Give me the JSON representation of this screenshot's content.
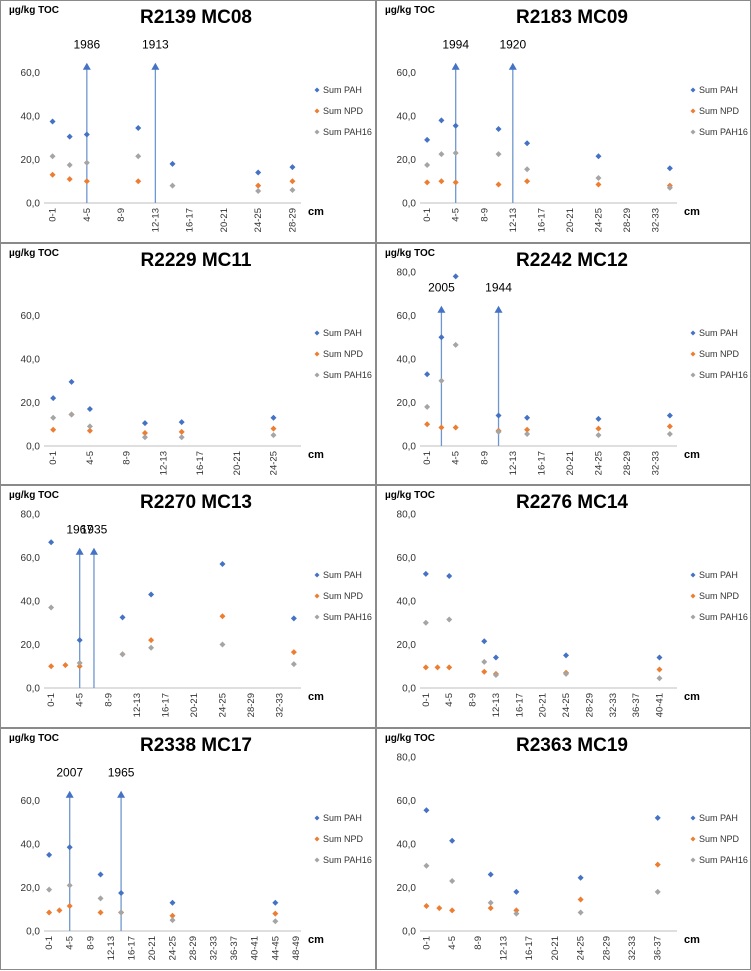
{
  "y_unit": "µg/kg TOC",
  "x_unit": "cm",
  "legend": [
    "Sum PAH",
    "Sum NPD",
    "Sum PAH16"
  ],
  "colors": {
    "Sum PAH": "#4472C4",
    "Sum NPD": "#ED7D31",
    "Sum PAH16": "#A5A5A5",
    "marker_line": "#6F97CF"
  },
  "ytick_labels": [
    "0,0",
    "20,0",
    "40,0",
    "60,0",
    "80,0"
  ],
  "chart_data": [
    {
      "type": "scatter",
      "title": "R2139 MC08",
      "ylabel": "µg/kg TOC",
      "xlabel": "cm",
      "ylim": [
        0,
        80
      ],
      "show_top_tick": false,
      "categories": [
        "0-1",
        "2-3",
        "4-5",
        "6-7",
        "8-9",
        "10-11",
        "12-13",
        "14-15",
        "16-17",
        "18-19",
        "20-21",
        "22-23",
        "24-25",
        "26-27",
        "28-29"
      ],
      "year_markers": [
        {
          "x": 2,
          "label": "1986"
        },
        {
          "x": 6,
          "label": "1913"
        }
      ],
      "series": [
        {
          "name": "Sum PAH",
          "points": [
            [
              0,
              37.5
            ],
            [
              1,
              30.5
            ],
            [
              2,
              31.5
            ],
            [
              5,
              34.5
            ],
            [
              7,
              18
            ],
            [
              12,
              14
            ],
            [
              14,
              16.5
            ]
          ]
        },
        {
          "name": "Sum NPD",
          "points": [
            [
              0,
              13
            ],
            [
              1,
              11
            ],
            [
              2,
              10
            ],
            [
              5,
              10
            ],
            [
              12,
              8
            ],
            [
              14,
              10
            ]
          ]
        },
        {
          "name": "Sum PAH16",
          "points": [
            [
              0,
              21.5
            ],
            [
              1,
              17.5
            ],
            [
              2,
              18.5
            ],
            [
              5,
              21.5
            ],
            [
              7,
              8
            ],
            [
              12,
              5.5
            ],
            [
              14,
              6
            ]
          ]
        }
      ]
    },
    {
      "type": "scatter",
      "title": "R2183 MC09",
      "ylabel": "µg/kg TOC",
      "xlabel": "cm",
      "ylim": [
        0,
        80
      ],
      "show_top_tick": false,
      "categories": [
        "0-1",
        "2-3",
        "4-5",
        "6-7",
        "8-9",
        "10-11",
        "12-13",
        "14-15",
        "16-17",
        "18-19",
        "20-21",
        "22-23",
        "24-25",
        "26-27",
        "28-29",
        "30-31",
        "32-33",
        "34-35"
      ],
      "year_markers": [
        {
          "x": 2,
          "label": "1994"
        },
        {
          "x": 6,
          "label": "1920"
        }
      ],
      "series": [
        {
          "name": "Sum PAH",
          "points": [
            [
              0,
              29
            ],
            [
              1,
              38
            ],
            [
              2,
              35.5
            ],
            [
              5,
              34
            ],
            [
              7,
              27.5
            ],
            [
              12,
              21.5
            ],
            [
              17,
              16
            ]
          ]
        },
        {
          "name": "Sum NPD",
          "points": [
            [
              0,
              9.5
            ],
            [
              1,
              10
            ],
            [
              2,
              9.5
            ],
            [
              5,
              8.5
            ],
            [
              7,
              10
            ],
            [
              12,
              8.5
            ],
            [
              17,
              8
            ]
          ]
        },
        {
          "name": "Sum PAH16",
          "points": [
            [
              0,
              17.5
            ],
            [
              1,
              22.5
            ],
            [
              2,
              23
            ],
            [
              5,
              22.5
            ],
            [
              7,
              15.5
            ],
            [
              12,
              11.5
            ],
            [
              17,
              7
            ]
          ]
        }
      ]
    },
    {
      "type": "scatter",
      "title": "R2229 MC11",
      "ylabel": "µg/kg TOC",
      "xlabel": "cm",
      "ylim": [
        0,
        80
      ],
      "show_top_tick": false,
      "categories": [
        "0-1",
        "2-3",
        "4-5",
        "6-7",
        "8-9",
        "10-11",
        "12-13",
        "14-15",
        "16-17",
        "18-19",
        "20-21",
        "22-23",
        "24-25",
        "26-27"
      ],
      "year_markers": [],
      "series": [
        {
          "name": "Sum PAH",
          "points": [
            [
              0,
              22
            ],
            [
              1,
              29.5
            ],
            [
              2,
              17
            ],
            [
              5,
              10.5
            ],
            [
              7,
              11
            ],
            [
              12,
              13
            ]
          ]
        },
        {
          "name": "Sum NPD",
          "points": [
            [
              0,
              7.5
            ],
            [
              1,
              14.5
            ],
            [
              2,
              7
            ],
            [
              5,
              6
            ],
            [
              7,
              6.5
            ],
            [
              12,
              8
            ]
          ]
        },
        {
          "name": "Sum PAH16",
          "points": [
            [
              0,
              13
            ],
            [
              1,
              14.5
            ],
            [
              2,
              9
            ],
            [
              5,
              4
            ],
            [
              7,
              4
            ],
            [
              12,
              5
            ]
          ]
        }
      ]
    },
    {
      "type": "scatter",
      "title": "R2242 MC12",
      "ylabel": "µg/kg TOC",
      "xlabel": "cm",
      "ylim": [
        0,
        80
      ],
      "show_top_tick": true,
      "categories": [
        "0-1",
        "2-3",
        "4-5",
        "6-7",
        "8-9",
        "10-11",
        "12-13",
        "14-15",
        "16-17",
        "18-19",
        "20-21",
        "22-23",
        "24-25",
        "26-27",
        "28-29",
        "30-31",
        "32-33",
        "34-35"
      ],
      "year_markers": [
        {
          "x": 1,
          "label": "2005"
        },
        {
          "x": 5,
          "label": "1944"
        }
      ],
      "series": [
        {
          "name": "Sum PAH",
          "points": [
            [
              0,
              33
            ],
            [
              1,
              50
            ],
            [
              2,
              78
            ],
            [
              5,
              14
            ],
            [
              7,
              13
            ],
            [
              12,
              12.5
            ],
            [
              17,
              14
            ]
          ]
        },
        {
          "name": "Sum NPD",
          "points": [
            [
              0,
              10
            ],
            [
              1,
              8.5
            ],
            [
              2,
              8.5
            ],
            [
              5,
              7
            ],
            [
              7,
              7.5
            ],
            [
              12,
              8
            ],
            [
              17,
              9
            ]
          ]
        },
        {
          "name": "Sum PAH16",
          "points": [
            [
              0,
              18
            ],
            [
              1,
              30
            ],
            [
              2,
              46.5
            ],
            [
              5,
              6.5
            ],
            [
              7,
              5.5
            ],
            [
              12,
              5
            ],
            [
              17,
              5.5
            ]
          ]
        }
      ]
    },
    {
      "type": "scatter",
      "title": "R2270 MC13",
      "ylabel": "µg/kg TOC",
      "xlabel": "cm",
      "ylim": [
        0,
        80
      ],
      "show_top_tick": true,
      "categories": [
        "0-1",
        "2-3",
        "4-5",
        "6-7",
        "8-9",
        "10-11",
        "12-13",
        "14-15",
        "16-17",
        "18-19",
        "20-21",
        "22-23",
        "24-25",
        "26-27",
        "28-29",
        "30-31",
        "32-33",
        "34-35"
      ],
      "year_markers": [
        {
          "x": 2,
          "label": "1967"
        },
        {
          "x": 3,
          "label": "1935"
        }
      ],
      "series": [
        {
          "name": "Sum PAH",
          "points": [
            [
              0,
              67
            ],
            [
              2,
              22
            ],
            [
              5,
              32.5
            ],
            [
              7,
              43
            ],
            [
              12,
              57
            ],
            [
              17,
              32
            ]
          ]
        },
        {
          "name": "Sum NPD",
          "points": [
            [
              0,
              10
            ],
            [
              1,
              10.5
            ],
            [
              2,
              10
            ],
            [
              5,
              15.5
            ],
            [
              7,
              22
            ],
            [
              12,
              33
            ],
            [
              17,
              16.5
            ]
          ]
        },
        {
          "name": "Sum PAH16",
          "points": [
            [
              0,
              37
            ],
            [
              2,
              11.5
            ],
            [
              5,
              15.5
            ],
            [
              7,
              18.5
            ],
            [
              12,
              20
            ],
            [
              17,
              11
            ]
          ]
        }
      ]
    },
    {
      "type": "scatter",
      "title": "R2276 MC14",
      "ylabel": "µg/kg TOC",
      "xlabel": "cm",
      "ylim": [
        0,
        80
      ],
      "show_top_tick": true,
      "categories": [
        "0-1",
        "2-3",
        "4-5",
        "6-7",
        "8-9",
        "10-11",
        "12-13",
        "14-15",
        "16-17",
        "18-19",
        "20-21",
        "22-23",
        "24-25",
        "26-27",
        "28-29",
        "30-31",
        "32-33",
        "34-35",
        "36-37",
        "38-39",
        "40-41",
        "42-43"
      ],
      "year_markers": [],
      "series": [
        {
          "name": "Sum PAH",
          "points": [
            [
              0,
              52.5
            ],
            [
              2,
              51.5
            ],
            [
              5,
              21.5
            ],
            [
              6,
              14
            ],
            [
              12,
              15
            ],
            [
              20,
              14
            ]
          ]
        },
        {
          "name": "Sum NPD",
          "points": [
            [
              0,
              9.5
            ],
            [
              1,
              9.5
            ],
            [
              2,
              9.5
            ],
            [
              5,
              7.5
            ],
            [
              6,
              6.5
            ],
            [
              12,
              7
            ],
            [
              20,
              8.5
            ]
          ]
        },
        {
          "name": "Sum PAH16",
          "points": [
            [
              0,
              30
            ],
            [
              2,
              31.5
            ],
            [
              5,
              12
            ],
            [
              6,
              6
            ],
            [
              12,
              6.5
            ],
            [
              20,
              4.5
            ]
          ]
        }
      ]
    },
    {
      "type": "scatter",
      "title": "R2338 MC17",
      "ylabel": "µg/kg TOC",
      "xlabel": "cm",
      "ylim": [
        0,
        80
      ],
      "show_top_tick": false,
      "categories": [
        "0-1",
        "2-3",
        "4-5",
        "6-7",
        "8-9",
        "10-11",
        "12-13",
        "14-15",
        "16-17",
        "18-19",
        "20-21",
        "22-23",
        "24-25",
        "26-27",
        "28-29",
        "30-31",
        "32-33",
        "34-35",
        "36-37",
        "38-39",
        "40-41",
        "42-43",
        "44-45",
        "46-47",
        "48-49"
      ],
      "year_markers": [
        {
          "x": 2,
          "label": "2007"
        },
        {
          "x": 7,
          "label": "1965"
        }
      ],
      "series": [
        {
          "name": "Sum PAH",
          "points": [
            [
              0,
              35
            ],
            [
              2,
              38.5
            ],
            [
              5,
              26
            ],
            [
              7,
              17.5
            ],
            [
              12,
              13
            ],
            [
              22,
              13
            ]
          ]
        },
        {
          "name": "Sum NPD",
          "points": [
            [
              0,
              8.5
            ],
            [
              1,
              9.5
            ],
            [
              2,
              11.5
            ],
            [
              5,
              8.5
            ],
            [
              7,
              8.5
            ],
            [
              12,
              7
            ],
            [
              22,
              8
            ]
          ]
        },
        {
          "name": "Sum PAH16",
          "points": [
            [
              0,
              19
            ],
            [
              2,
              21
            ],
            [
              5,
              15
            ],
            [
              7,
              8.5
            ],
            [
              12,
              5
            ],
            [
              22,
              4.5
            ]
          ]
        }
      ]
    },
    {
      "type": "scatter",
      "title": "R2363 MC19",
      "ylabel": "µg/kg TOC",
      "xlabel": "cm",
      "ylim": [
        0,
        80
      ],
      "show_top_tick": true,
      "categories": [
        "0-1",
        "2-3",
        "4-5",
        "6-7",
        "8-9",
        "10-11",
        "12-13",
        "14-15",
        "16-17",
        "18-19",
        "20-21",
        "22-23",
        "24-25",
        "26-27",
        "28-29",
        "30-31",
        "32-33",
        "34-35",
        "36-37",
        "38-39"
      ],
      "year_markers": [],
      "series": [
        {
          "name": "Sum PAH",
          "points": [
            [
              0,
              55.5
            ],
            [
              2,
              41.5
            ],
            [
              5,
              26
            ],
            [
              7,
              18
            ],
            [
              12,
              24.5
            ],
            [
              18,
              52
            ]
          ]
        },
        {
          "name": "Sum NPD",
          "points": [
            [
              0,
              11.5
            ],
            [
              1,
              10.5
            ],
            [
              2,
              9.5
            ],
            [
              5,
              10.5
            ],
            [
              7,
              9.5
            ],
            [
              12,
              14.5
            ],
            [
              18,
              30.5
            ]
          ]
        },
        {
          "name": "Sum PAH16",
          "points": [
            [
              0,
              30
            ],
            [
              2,
              23
            ],
            [
              5,
              13
            ],
            [
              7,
              8
            ],
            [
              12,
              8.5
            ],
            [
              18,
              18
            ]
          ]
        }
      ]
    }
  ]
}
